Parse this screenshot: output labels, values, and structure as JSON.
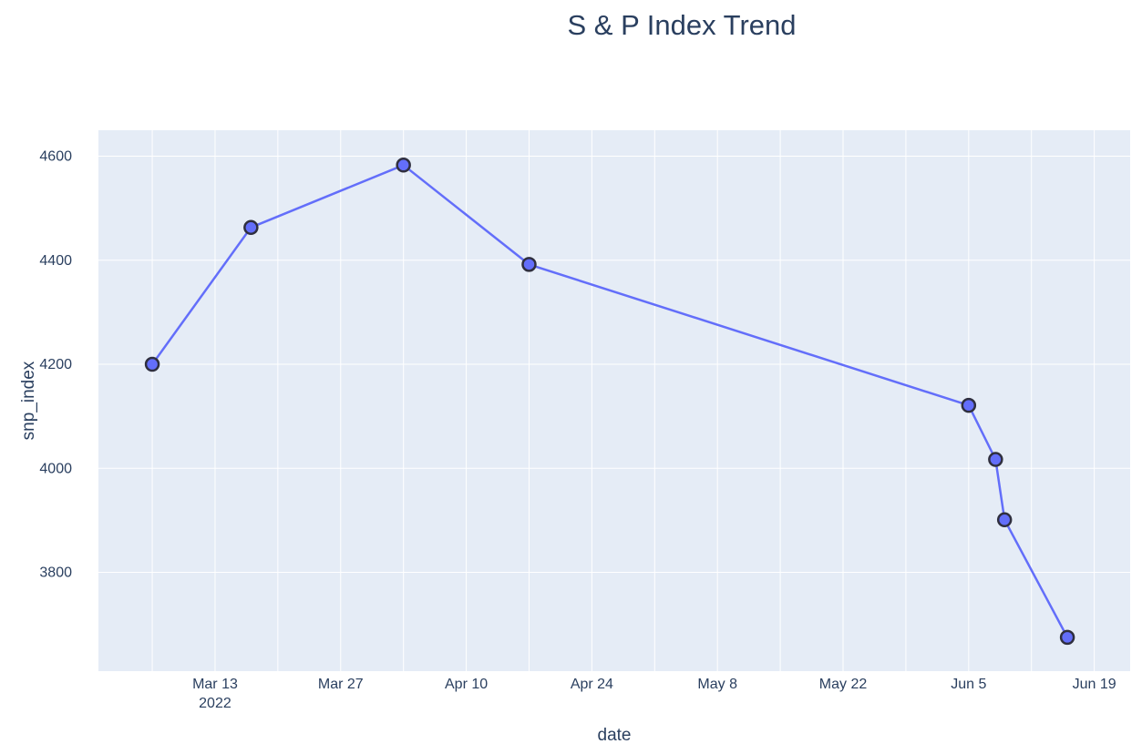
{
  "chart_data": {
    "type": "line",
    "title": "S & P Index Trend",
    "xlabel": "date",
    "ylabel": "snp_index",
    "x_ticks": [
      {
        "date": "2022-03-13",
        "label": "Mar 13",
        "sublabel": "2022"
      },
      {
        "date": "2022-03-27",
        "label": "Mar 27",
        "sublabel": ""
      },
      {
        "date": "2022-04-10",
        "label": "Apr 10",
        "sublabel": ""
      },
      {
        "date": "2022-04-24",
        "label": "Apr 24",
        "sublabel": ""
      },
      {
        "date": "2022-05-08",
        "label": "May 8",
        "sublabel": ""
      },
      {
        "date": "2022-05-22",
        "label": "May 22",
        "sublabel": ""
      },
      {
        "date": "2022-06-05",
        "label": "Jun 5",
        "sublabel": ""
      },
      {
        "date": "2022-06-19",
        "label": "Jun 19",
        "sublabel": ""
      }
    ],
    "y_ticks": [
      3800,
      4000,
      4200,
      4400,
      4600
    ],
    "xlim": [
      "2022-02-28",
      "2022-06-23"
    ],
    "ylim": [
      3610,
      4650
    ],
    "grid": true,
    "series": [
      {
        "name": "",
        "color": "#636efa",
        "marker_line_color": "#2f2f3f",
        "points": [
          {
            "x": "2022-03-06",
            "y": 4200
          },
          {
            "x": "2022-03-17",
            "y": 4463
          },
          {
            "x": "2022-04-03",
            "y": 4583
          },
          {
            "x": "2022-04-17",
            "y": 4392
          },
          {
            "x": "2022-06-05",
            "y": 4121
          },
          {
            "x": "2022-06-08",
            "y": 4017
          },
          {
            "x": "2022-06-09",
            "y": 3901
          },
          {
            "x": "2022-06-16",
            "y": 3675
          }
        ]
      }
    ],
    "colors": {
      "plot_bg": "#e5ecf6",
      "grid": "#ffffff",
      "text": "#2a3f5f"
    }
  }
}
